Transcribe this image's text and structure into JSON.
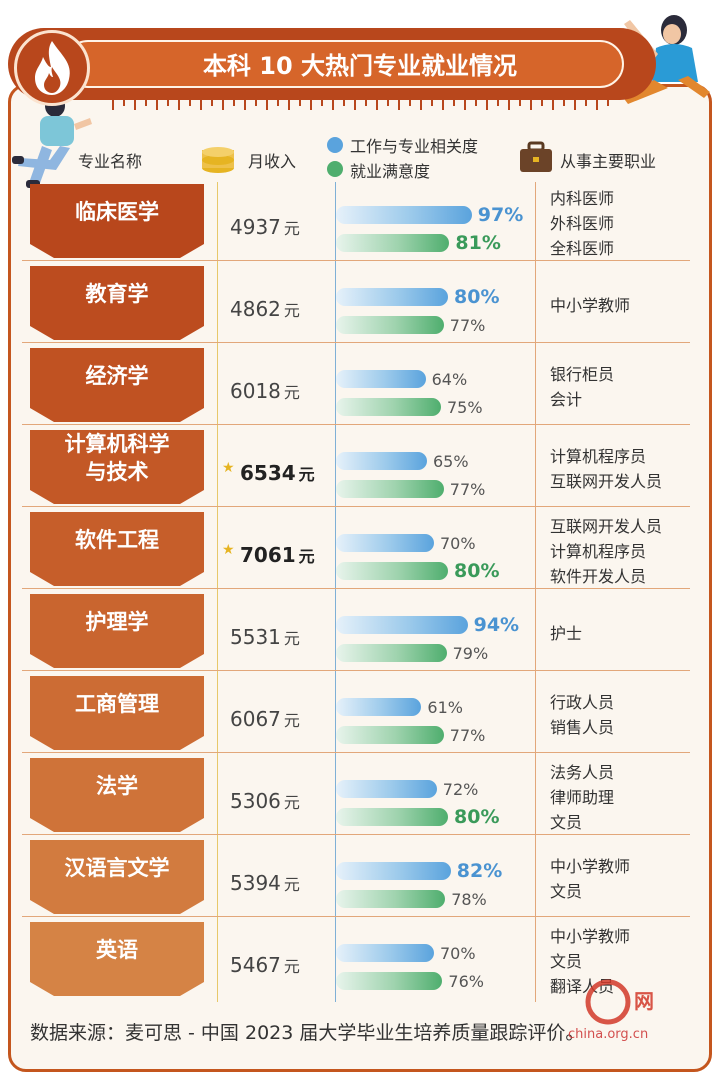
{
  "title": "本科 10 大热门专业就业情况",
  "headers": {
    "major": "专业名称",
    "income": "月收入",
    "legend_relevance": "工作与专业相关度",
    "legend_satisfaction": "就业满意度",
    "jobs": "从事主要职业"
  },
  "income_unit": "元",
  "source": "数据来源：麦可思 - 中国 2023 届大学毕业生培养质量跟踪评价。",
  "watermark": "china.org.cn",
  "colors": {
    "relevance": "#5aa3dd",
    "satisfaction": "#4fae6e",
    "frame": "#c4561e",
    "major_fills": [
      "#b8471c",
      "#bc4c1f",
      "#c05222",
      "#c35826",
      "#c65e2a",
      "#c9652f",
      "#cc6c34",
      "#cf7339",
      "#d27b3f",
      "#d58345"
    ]
  },
  "chart_data": {
    "type": "table",
    "columns": [
      "专业名称",
      "月收入",
      "工作与专业相关度",
      "就业满意度",
      "从事主要职业"
    ],
    "rows": [
      {
        "major": "临床医学",
        "income": 4937,
        "relevance": 97,
        "satisfaction": 81,
        "hot": false,
        "rel_label": "97%",
        "sat_label": "81%",
        "rel_bold": true,
        "sat_bold": true,
        "jobs": [
          "内科医师",
          "外科医师",
          "全科医师"
        ]
      },
      {
        "major": "教育学",
        "income": 4862,
        "relevance": 80,
        "satisfaction": 77,
        "hot": false,
        "rel_label": "80%",
        "sat_label": "77%",
        "rel_bold": true,
        "sat_bold": false,
        "jobs": [
          "中小学教师"
        ]
      },
      {
        "major": "经济学",
        "income": 6018,
        "relevance": 64,
        "satisfaction": 75,
        "hot": false,
        "rel_label": "64%",
        "sat_label": "75%",
        "rel_bold": false,
        "sat_bold": false,
        "jobs": [
          "银行柜员",
          "会计"
        ]
      },
      {
        "major": "计算机科学与技术",
        "major_lines": [
          "计算机科学",
          "与技术"
        ],
        "income": 6534,
        "relevance": 65,
        "satisfaction": 77,
        "hot": true,
        "rel_label": "65%",
        "sat_label": "77%",
        "rel_bold": false,
        "sat_bold": false,
        "jobs": [
          "计算机程序员",
          "互联网开发人员"
        ]
      },
      {
        "major": "软件工程",
        "income": 7061,
        "relevance": 70,
        "satisfaction": 80,
        "hot": true,
        "rel_label": "70%",
        "sat_label": "80%",
        "rel_bold": false,
        "sat_bold": true,
        "jobs": [
          "互联网开发人员",
          "计算机程序员",
          "软件开发人员"
        ]
      },
      {
        "major": "护理学",
        "income": 5531,
        "relevance": 94,
        "satisfaction": 79,
        "hot": false,
        "rel_label": "94%",
        "sat_label": "79%",
        "rel_bold": true,
        "sat_bold": false,
        "jobs": [
          "护士"
        ]
      },
      {
        "major": "工商管理",
        "income": 6067,
        "relevance": 61,
        "satisfaction": 77,
        "hot": false,
        "rel_label": "61%",
        "sat_label": "77%",
        "rel_bold": false,
        "sat_bold": false,
        "jobs": [
          "行政人员",
          "销售人员"
        ]
      },
      {
        "major": "法学",
        "income": 5306,
        "relevance": 72,
        "satisfaction": 80,
        "hot": false,
        "rel_label": "72%",
        "sat_label": "80%",
        "rel_bold": false,
        "sat_bold": true,
        "jobs": [
          "法务人员",
          "律师助理",
          "文员"
        ]
      },
      {
        "major": "汉语言文学",
        "income": 5394,
        "relevance": 82,
        "satisfaction": 78,
        "hot": false,
        "rel_label": "82%",
        "sat_label": "78%",
        "rel_bold": true,
        "sat_bold": false,
        "jobs": [
          "中小学教师",
          "文员"
        ]
      },
      {
        "major": "英语",
        "income": 5467,
        "relevance": 70,
        "satisfaction": 76,
        "hot": false,
        "rel_label": "70%",
        "sat_label": "76%",
        "rel_bold": false,
        "sat_bold": false,
        "jobs": [
          "中小学教师",
          "文员",
          "翻译人员"
        ]
      }
    ]
  }
}
